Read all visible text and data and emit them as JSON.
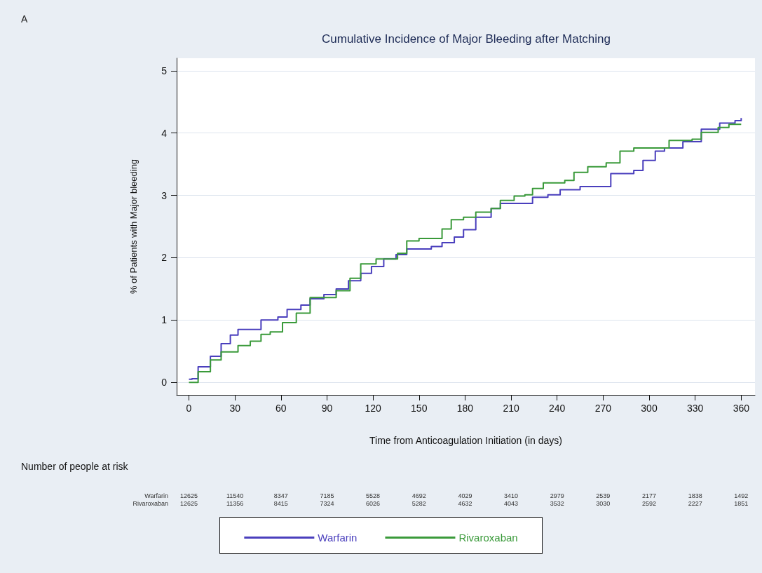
{
  "chart_data": {
    "type": "step",
    "title": "Cumulative Incidence of Major Bleeding after Matching",
    "xlabel": "Time from Anticoagulation Initiation (in days)",
    "ylabel": "% of Patients with Major bleeding",
    "xlim": [
      -8,
      369
    ],
    "xticks": [
      0,
      30,
      60,
      90,
      120,
      150,
      180,
      210,
      240,
      270,
      300,
      330,
      360
    ],
    "ylim": [
      -0.2,
      5.2
    ],
    "yticks": [
      0,
      1,
      2,
      3,
      4,
      5
    ],
    "grid": "y",
    "legend": "bottom",
    "line_style": "solid",
    "marker": "none",
    "series": [
      {
        "name": "Warfarin",
        "color": "#4a3fbd",
        "x": [
          0,
          2,
          6,
          14,
          21,
          27,
          32,
          35,
          47,
          58,
          64,
          73,
          79,
          88,
          96,
          104,
          112,
          119,
          127,
          135,
          142,
          158,
          165,
          173,
          179,
          187,
          197,
          203,
          218,
          224,
          234,
          242,
          255,
          270,
          275,
          290,
          296,
          304,
          310,
          322,
          331,
          334,
          346,
          356,
          360
        ],
        "values": [
          0.05,
          0.06,
          0.25,
          0.42,
          0.62,
          0.76,
          0.85,
          0.85,
          1.0,
          1.05,
          1.17,
          1.24,
          1.34,
          1.41,
          1.5,
          1.63,
          1.75,
          1.86,
          1.98,
          2.05,
          2.14,
          2.18,
          2.24,
          2.33,
          2.45,
          2.65,
          2.79,
          2.87,
          2.87,
          2.97,
          3.01,
          3.09,
          3.14,
          3.14,
          3.35,
          3.4,
          3.56,
          3.71,
          3.76,
          3.86,
          3.86,
          4.06,
          4.16,
          4.2,
          4.24
        ]
      },
      {
        "name": "Rivaroxaban",
        "color": "#3a9a3a",
        "x": [
          0,
          6,
          14,
          21,
          32,
          40,
          47,
          53,
          61,
          70,
          79,
          96,
          105,
          112,
          122,
          136,
          142,
          150,
          165,
          171,
          179,
          187,
          197,
          203,
          212,
          219,
          224,
          231,
          245,
          251,
          260,
          272,
          281,
          290,
          310,
          313,
          328,
          334,
          345,
          352,
          360
        ],
        "values": [
          0,
          0.17,
          0.36,
          0.49,
          0.59,
          0.66,
          0.77,
          0.81,
          0.96,
          1.11,
          1.36,
          1.47,
          1.67,
          1.9,
          1.98,
          2.07,
          2.27,
          2.31,
          2.46,
          2.61,
          2.65,
          2.73,
          2.79,
          2.92,
          2.99,
          3.01,
          3.11,
          3.2,
          3.24,
          3.37,
          3.46,
          3.52,
          3.71,
          3.76,
          3.76,
          3.88,
          3.9,
          4.01,
          4.09,
          4.14,
          4.14
        ]
      }
    ],
    "annotations": [
      "A",
      "Number of people at risk",
      "Warfarin",
      "12625",
      "11540",
      "8347",
      "7185",
      "5528",
      "4692",
      "4029",
      "3410",
      "2979",
      "2539",
      "2177",
      "1838",
      "1492",
      "Rivaroxaban",
      "12625",
      "11356",
      "8415",
      "7324",
      "6026",
      "5282",
      "4632",
      "4043",
      "3532",
      "3030",
      "2592",
      "2227",
      "1851"
    ]
  }
}
